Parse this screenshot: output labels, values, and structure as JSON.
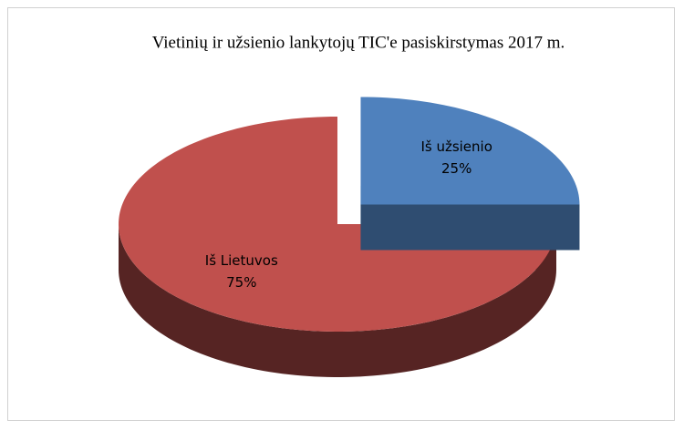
{
  "chart_data": {
    "type": "pie",
    "title": "Vietinių ir užsienio lankytojų TIC'e pasiskirstymas 2017 m.",
    "categories": [
      "Iš užsienio",
      "Iš Lietuvos"
    ],
    "values": [
      25,
      75
    ],
    "value_labels": [
      "25%",
      "75%"
    ],
    "colors": [
      "#4f81bd",
      "#c0504d"
    ]
  }
}
